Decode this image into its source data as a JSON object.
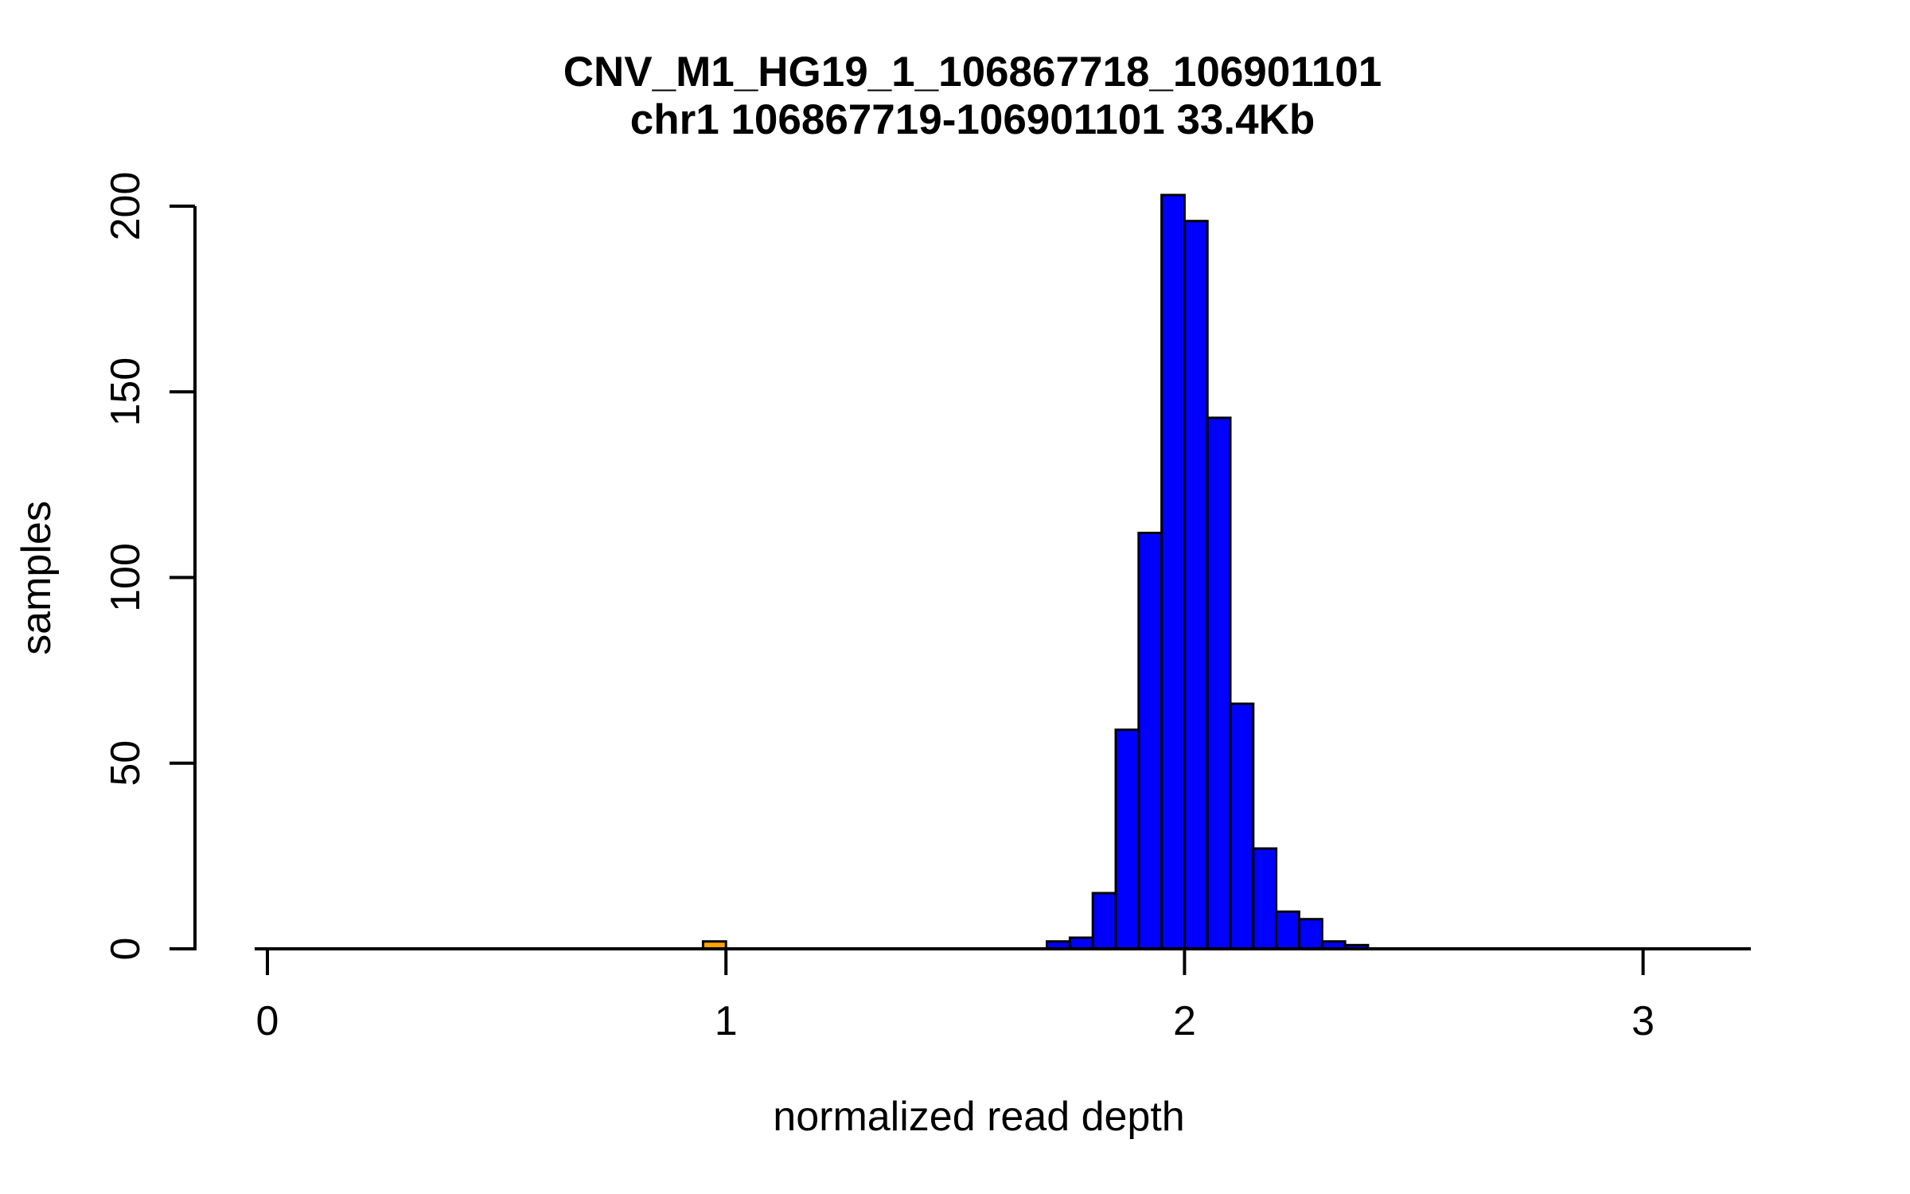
{
  "page": {
    "background_color": "#FFFFFF"
  },
  "chart_data": {
    "type": "bar",
    "subtype": "histogram",
    "title_line1": "CNV_M1_HG19_1_106867718_106901101",
    "title_line2": "chr1 106867719-106901101 33.4Kb",
    "xlabel": "normalized read depth",
    "ylabel": "samples",
    "xlim": [
      -0.03,
      3.26
    ],
    "ylim": [
      0,
      200
    ],
    "grid": false,
    "legend": null,
    "x_ticks": [
      {
        "value": 0,
        "label": "0"
      },
      {
        "value": 1,
        "label": "1"
      },
      {
        "value": 2,
        "label": "2"
      },
      {
        "value": 3,
        "label": "3"
      }
    ],
    "y_ticks": [
      {
        "value": 0,
        "label": "0"
      },
      {
        "value": 50,
        "label": "50"
      },
      {
        "value": 100,
        "label": "100"
      },
      {
        "value": 150,
        "label": "150"
      },
      {
        "value": 200,
        "label": "200"
      }
    ],
    "bin_width": 0.05,
    "bins": [
      {
        "x0": 0.95,
        "x1": 1.0,
        "count": 2,
        "color": "#FFA500"
      },
      {
        "x0": 1.7,
        "x1": 1.75,
        "count": 2,
        "color": "#0000FF"
      },
      {
        "x0": 1.75,
        "x1": 1.8,
        "count": 3,
        "color": "#0000FF"
      },
      {
        "x0": 1.8,
        "x1": 1.85,
        "count": 15,
        "color": "#0000FF"
      },
      {
        "x0": 1.85,
        "x1": 1.9,
        "count": 59,
        "color": "#0000FF"
      },
      {
        "x0": 1.9,
        "x1": 1.95,
        "count": 112,
        "color": "#0000FF"
      },
      {
        "x0": 1.95,
        "x1": 2.0,
        "count": 203,
        "color": "#0000FF"
      },
      {
        "x0": 2.0,
        "x1": 2.05,
        "count": 196,
        "color": "#0000FF"
      },
      {
        "x0": 2.05,
        "x1": 2.1,
        "count": 143,
        "color": "#0000FF"
      },
      {
        "x0": 2.1,
        "x1": 2.15,
        "count": 66,
        "color": "#0000FF"
      },
      {
        "x0": 2.15,
        "x1": 2.2,
        "count": 27,
        "color": "#0000FF"
      },
      {
        "x0": 2.2,
        "x1": 2.25,
        "count": 10,
        "color": "#0000FF"
      },
      {
        "x0": 2.25,
        "x1": 2.3,
        "count": 8,
        "color": "#0000FF"
      },
      {
        "x0": 2.3,
        "x1": 2.35,
        "count": 2,
        "color": "#0000FF"
      },
      {
        "x0": 2.35,
        "x1": 2.4,
        "count": 1,
        "color": "#0000FF"
      }
    ],
    "colors": {
      "bar_fill": "#0000FF",
      "highlight_fill": "#FFA500",
      "stroke": "#000000",
      "text": "#000000"
    }
  }
}
